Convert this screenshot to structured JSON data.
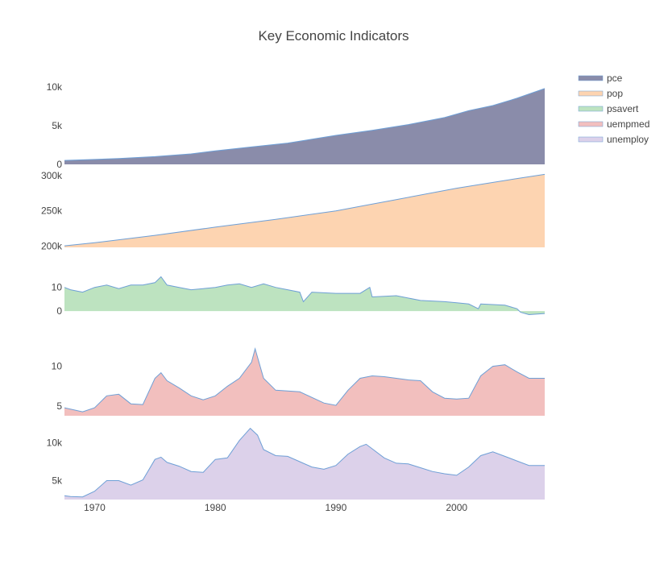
{
  "chart_data": {
    "type": "area",
    "title": "Key Economic Indicators",
    "x_ticks": [
      "1970",
      "1980",
      "1990",
      "2000"
    ],
    "x_range": [
      1967.5,
      2007.3
    ],
    "line_color": "#6e9fd6",
    "legend_placement": "top-right",
    "panels": [
      {
        "name": "pce",
        "fill": "#8a8caa",
        "ylim": [
          0,
          10000
        ],
        "y_ticks": [
          "0",
          "5k",
          "10k"
        ],
        "y_tick_values": [
          0,
          5000,
          10000
        ],
        "x": [
          1967.5,
          1970,
          1972,
          1975,
          1978,
          1980,
          1983,
          1986,
          1990,
          1993,
          1996,
          1999,
          2001,
          2003,
          2005,
          2007.3
        ],
        "values": [
          510,
          640,
          760,
          1000,
          1350,
          1750,
          2250,
          2750,
          3750,
          4400,
          5150,
          6050,
          6950,
          7600,
          8550,
          9800
        ]
      },
      {
        "name": "pop",
        "fill": "#fdd4b1",
        "ylim": [
          198500,
          302000
        ],
        "y_ticks": [
          "200k",
          "250k",
          "300k"
        ],
        "y_tick_values": [
          200000,
          250000,
          300000
        ],
        "x": [
          1967.5,
          1970,
          1975,
          1980,
          1985,
          1990,
          1995,
          2000,
          2005,
          2007.3
        ],
        "values": [
          200700,
          205000,
          215500,
          227000,
          238000,
          250000,
          266000,
          282000,
          295600,
          301500
        ]
      },
      {
        "name": "psavert",
        "fill": "#bde3c0",
        "ylim": [
          -2,
          15
        ],
        "y_ticks": [
          "0",
          "10"
        ],
        "y_tick_values": [
          0,
          10
        ],
        "x": [
          1967.5,
          1968,
          1969,
          1970,
          1971,
          1972,
          1973,
          1974,
          1975,
          1975.5,
          1976,
          1977,
          1978,
          1979,
          1980,
          1981,
          1982,
          1983,
          1984,
          1985,
          1986,
          1987,
          1987.3,
          1988,
          1990,
          1992,
          1992.8,
          1993,
          1995,
          1997,
          1999,
          2000,
          2001,
          2001.8,
          2002,
          2004,
          2005,
          2005.3,
          2006,
          2007.3
        ],
        "values": [
          10,
          9,
          8,
          10,
          11,
          9.5,
          11,
          11,
          12,
          14.5,
          11,
          10,
          9,
          9.5,
          10,
          11,
          11.5,
          10,
          11.5,
          10,
          9,
          8,
          4,
          8,
          7.5,
          7.5,
          10,
          6,
          6.5,
          4.5,
          4,
          3.5,
          3,
          1,
          3,
          2.5,
          1,
          -0.5,
          -1.5,
          -1
        ]
      },
      {
        "name": "uempmed",
        "fill": "#f2bfbe",
        "ylim": [
          3.8,
          13.5
        ],
        "y_ticks": [
          "5",
          "10"
        ],
        "y_tick_values": [
          5,
          10
        ],
        "x": [
          1967.5,
          1969,
          1970,
          1971,
          1972,
          1973,
          1974,
          1975,
          1975.5,
          1976,
          1977,
          1978,
          1979,
          1980,
          1981,
          1982,
          1983,
          1983.3,
          1984,
          1985,
          1987,
          1989,
          1990,
          1991,
          1992,
          1993,
          1994,
          1995,
          1996,
          1997,
          1998,
          1999,
          2000,
          2001,
          2002,
          2003,
          2004,
          2005,
          2006,
          2007.3
        ],
        "values": [
          4.8,
          4.3,
          4.8,
          6.3,
          6.5,
          5.3,
          5.2,
          8.5,
          9.2,
          8.2,
          7.3,
          6.3,
          5.8,
          6.3,
          7.5,
          8.5,
          10.5,
          12.2,
          8.5,
          7.0,
          6.8,
          5.4,
          5.1,
          7.0,
          8.5,
          8.8,
          8.7,
          8.5,
          8.3,
          8.2,
          6.8,
          6.0,
          5.9,
          6.0,
          8.8,
          10.0,
          10.2,
          9.3,
          8.5,
          8.5
        ]
      },
      {
        "name": "unemploy",
        "fill": "#dcd1ea",
        "ylim": [
          2500,
          12500
        ],
        "y_ticks": [
          "5k",
          "10k"
        ],
        "y_tick_values": [
          5000,
          10000
        ],
        "x": [
          1967.5,
          1968,
          1969,
          1970,
          1971,
          1972,
          1973,
          1974,
          1975,
          1975.5,
          1976,
          1977,
          1978,
          1979,
          1980,
          1981,
          1982,
          1982.9,
          1983.5,
          1984,
          1985,
          1986,
          1987,
          1988,
          1989,
          1990,
          1991,
          1992,
          1992.5,
          1993,
          1994,
          1995,
          1996,
          1997,
          1998,
          1999,
          2000,
          2001,
          2002,
          2003,
          2004,
          2005,
          2006,
          2007.3
        ],
        "values": [
          3000,
          2900,
          2850,
          3600,
          5000,
          5000,
          4400,
          5100,
          7800,
          8100,
          7400,
          6900,
          6200,
          6100,
          7800,
          8000,
          10300,
          11900,
          11000,
          9100,
          8300,
          8200,
          7500,
          6800,
          6500,
          7000,
          8500,
          9500,
          9800,
          9200,
          8000,
          7300,
          7200,
          6700,
          6200,
          5900,
          5700,
          6800,
          8300,
          8800,
          8200,
          7600,
          7000,
          7000
        ]
      }
    ]
  }
}
